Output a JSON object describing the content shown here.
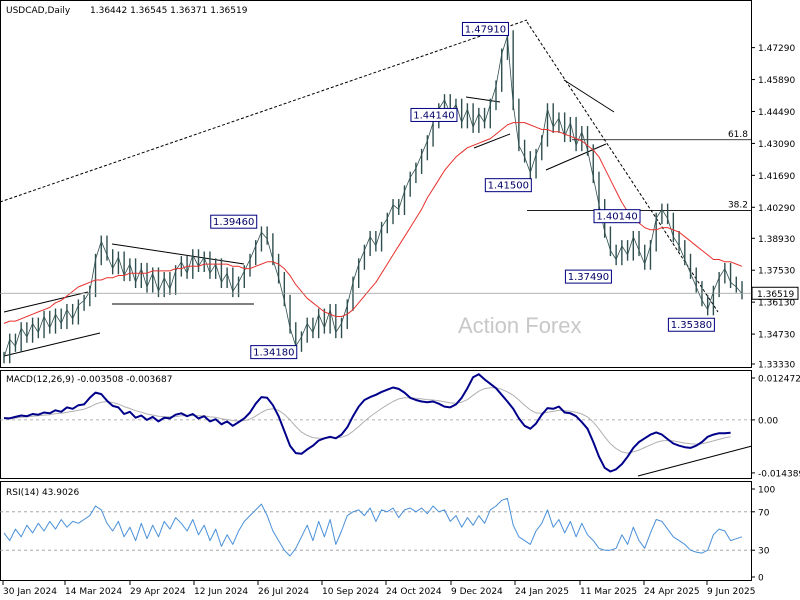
{
  "chart_data": [
    {
      "type": "line",
      "panel": "price",
      "title": "USDCAD,Daily",
      "ohlc": "1.36442 1.36545 1.36371 1.36519",
      "ylim": [
        1.3333,
        1.4929
      ],
      "yticks": [
        "1.47290",
        "1.45890",
        "1.44490",
        "1.43090",
        "1.41690",
        "1.40290",
        "1.38930",
        "1.37530",
        "1.36130",
        "1.34730",
        "1.33330"
      ],
      "current_price": "1.36519",
      "watermark": "Action Forex",
      "fib_levels": [
        {
          "label": "61.8",
          "value": 1.4325
        },
        {
          "label": "38.2",
          "value": 1.4015
        }
      ],
      "annotations": [
        "1.47910",
        "1.44140",
        "1.41500",
        "1.39460",
        "1.40140",
        "1.37490",
        "1.35380",
        "1.34180"
      ],
      "series": [
        {
          "values": [
            1.337,
            1.345,
            1.342,
            1.35,
            1.346,
            1.352,
            1.348,
            1.355,
            1.35,
            1.356,
            1.352,
            1.358,
            1.354,
            1.36,
            1.362,
            1.366,
            1.38,
            1.388,
            1.382,
            1.376,
            1.381,
            1.373,
            1.378,
            1.37,
            1.376,
            1.368,
            1.374,
            1.366,
            1.372,
            1.367,
            1.375,
            1.379,
            1.374,
            1.382,
            1.377,
            1.381,
            1.374,
            1.378,
            1.37,
            1.374,
            1.366,
            1.37,
            1.375,
            1.38,
            1.386,
            1.392,
            1.389,
            1.38,
            1.372,
            1.362,
            1.35,
            1.342,
            1.346,
            1.352,
            1.348,
            1.356,
            1.35,
            1.358,
            1.348,
            1.352,
            1.36,
            1.37,
            1.378,
            1.384,
            1.39,
            1.386,
            1.394,
            1.398,
            1.404,
            1.402,
            1.41,
            1.416,
            1.42,
            1.426,
            1.432,
            1.44,
            1.446,
            1.45,
            1.444,
            1.448,
            1.44,
            1.446,
            1.438,
            1.444,
            1.44,
            1.448,
            1.456,
            1.47,
            1.478,
            1.448,
            1.43,
            1.425,
            1.418,
            1.426,
            1.432,
            1.446,
            1.438,
            1.442,
            1.434,
            1.44,
            1.43,
            1.436,
            1.428,
            1.416,
            1.404,
            1.392,
            1.384,
            1.38,
            1.386,
            1.382,
            1.39,
            1.384,
            1.378,
            1.386,
            1.398,
            1.402,
            1.398,
            1.39,
            1.386,
            1.38,
            1.374,
            1.368,
            1.362,
            1.358,
            1.366,
            1.372,
            1.376,
            1.37,
            1.368,
            1.365
          ]
        },
        {
          "values": [
            1.352,
            1.353,
            1.353,
            1.354,
            1.355,
            1.356,
            1.357,
            1.358,
            1.359,
            1.361,
            1.362,
            1.364,
            1.366,
            1.368,
            1.369,
            1.37,
            1.371,
            1.371,
            1.372,
            1.372,
            1.373,
            1.373,
            1.374,
            1.374,
            1.374,
            1.374,
            1.375,
            1.375,
            1.375,
            1.375,
            1.376,
            1.376,
            1.377,
            1.377,
            1.377,
            1.378,
            1.378,
            1.378,
            1.378,
            1.378,
            1.377,
            1.377,
            1.376,
            1.376,
            1.377,
            1.378,
            1.379,
            1.379,
            1.378,
            1.376,
            1.373,
            1.369,
            1.366,
            1.363,
            1.361,
            1.359,
            1.357,
            1.356,
            1.355,
            1.355,
            1.356,
            1.358,
            1.361,
            1.364,
            1.367,
            1.37,
            1.374,
            1.378,
            1.382,
            1.386,
            1.39,
            1.394,
            1.398,
            1.402,
            1.407,
            1.411,
            1.415,
            1.419,
            1.422,
            1.425,
            1.427,
            1.429,
            1.43,
            1.431,
            1.432,
            1.433,
            1.435,
            1.437,
            1.439,
            1.44,
            1.44,
            1.44,
            1.439,
            1.438,
            1.437,
            1.437,
            1.436,
            1.436,
            1.435,
            1.434,
            1.433,
            1.432,
            1.43,
            1.428,
            1.425,
            1.42,
            1.415,
            1.41,
            1.405,
            1.401,
            1.398,
            1.396,
            1.394,
            1.393,
            1.393,
            1.394,
            1.394,
            1.393,
            1.392,
            1.39,
            1.388,
            1.386,
            1.384,
            1.382,
            1.38,
            1.38,
            1.379,
            1.379,
            1.378,
            1.377
          ]
        }
      ]
    },
    {
      "type": "line",
      "panel": "macd",
      "title": "MACD(12,26,9) -0.003508 -0.003687",
      "ylim": [
        -0.0155,
        0.013
      ],
      "yticks": [
        "0.012472",
        "0.00",
        "-0.014389"
      ],
      "series": [
        {
          "values": [
            0.0005,
            0.0004,
            0.0008,
            0.0012,
            0.001,
            0.0016,
            0.0014,
            0.002,
            0.0018,
            0.0026,
            0.0022,
            0.0034,
            0.003,
            0.004,
            0.0042,
            0.006,
            0.0074,
            0.007,
            0.0052,
            0.0038,
            0.0034,
            0.0016,
            0.0022,
            0.0006,
            0.0012,
            0.0,
            0.0008,
            -0.0004,
            0.0006,
            0.0004,
            0.0014,
            0.0018,
            0.001,
            0.0016,
            0.0004,
            0.001,
            -0.0004,
            0.0002,
            -0.0012,
            -0.0004,
            -0.0016,
            -0.0006,
            0.0004,
            0.002,
            0.0044,
            0.0062,
            0.006,
            0.004,
            0.001,
            -0.003,
            -0.007,
            -0.009,
            -0.0092,
            -0.008,
            -0.007,
            -0.0056,
            -0.005,
            -0.0046,
            -0.005,
            -0.004,
            -0.002,
            0.001,
            0.0036,
            0.0054,
            0.0062,
            0.0068,
            0.0076,
            0.0082,
            0.0088,
            0.0084,
            0.0074,
            0.006,
            0.0054,
            0.005,
            0.0048,
            0.005,
            0.0044,
            0.0036,
            0.0034,
            0.0042,
            0.006,
            0.0086,
            0.0116,
            0.0124,
            0.011,
            0.0098,
            0.0086,
            0.0068,
            0.005,
            0.003,
            0.0004,
            -0.0016,
            -0.0024,
            -0.001,
            0.0014,
            0.0032,
            0.003,
            0.0036,
            0.002,
            0.0018,
            0.001,
            -0.0006,
            -0.0024,
            -0.006,
            -0.01,
            -0.013,
            -0.014,
            -0.0134,
            -0.012,
            -0.01,
            -0.0076,
            -0.006,
            -0.005,
            -0.004,
            -0.0034,
            -0.004,
            -0.0052,
            -0.0064,
            -0.007,
            -0.0074,
            -0.0076,
            -0.007,
            -0.006,
            -0.0046,
            -0.004,
            -0.0036,
            -0.0036,
            -0.0035
          ]
        },
        {
          "values": [
            0.0004,
            0.0004,
            0.0005,
            0.0007,
            0.0008,
            0.001,
            0.0011,
            0.0013,
            0.0014,
            0.0017,
            0.0018,
            0.0021,
            0.0023,
            0.0026,
            0.0029,
            0.0035,
            0.0043,
            0.0048,
            0.005,
            0.0047,
            0.0043,
            0.0036,
            0.0031,
            0.0025,
            0.0021,
            0.0016,
            0.0013,
            0.001,
            0.0009,
            0.0008,
            0.0009,
            0.0011,
            0.0011,
            0.0012,
            0.0011,
            0.0011,
            0.0008,
            0.0007,
            0.0003,
            0.0001,
            -0.0002,
            -0.0003,
            -0.0002,
            0.0002,
            0.001,
            0.002,
            0.0028,
            0.003,
            0.0026,
            0.0015,
            0.0,
            -0.0018,
            -0.0033,
            -0.0042,
            -0.0048,
            -0.005,
            -0.005,
            -0.0049,
            -0.0049,
            -0.0047,
            -0.0042,
            -0.0031,
            -0.0018,
            -0.0004,
            0.0009,
            0.002,
            0.0031,
            0.0041,
            0.005,
            0.0057,
            0.006,
            0.006,
            0.0059,
            0.0057,
            0.0055,
            0.0054,
            0.0052,
            0.0049,
            0.0046,
            0.0045,
            0.0048,
            0.0055,
            0.0067,
            0.0078,
            0.0085,
            0.0087,
            0.0087,
            0.0083,
            0.0076,
            0.0067,
            0.0054,
            0.004,
            0.0027,
            0.0019,
            0.0018,
            0.0021,
            0.0023,
            0.0026,
            0.0025,
            0.0024,
            0.0021,
            0.0016,
            0.0008,
            -0.0006,
            -0.0025,
            -0.0046,
            -0.0065,
            -0.0078,
            -0.0087,
            -0.009,
            -0.0087,
            -0.0082,
            -0.0075,
            -0.0068,
            -0.0061,
            -0.0057,
            -0.0056,
            -0.0057,
            -0.006,
            -0.0063,
            -0.0065,
            -0.0066,
            -0.0065,
            -0.0061,
            -0.0057,
            -0.0053,
            -0.0049,
            -0.0046
          ]
        }
      ]
    },
    {
      "type": "line",
      "panel": "rsi",
      "title": "RSI(14) 43.9026",
      "ylim": [
        0,
        100
      ],
      "yticks": [
        "100",
        "70",
        "30",
        "0"
      ],
      "series": [
        {
          "values": [
            48,
            40,
            52,
            44,
            56,
            48,
            58,
            50,
            60,
            52,
            62,
            54,
            60,
            58,
            62,
            66,
            76,
            72,
            58,
            50,
            60,
            44,
            54,
            40,
            58,
            42,
            56,
            44,
            60,
            52,
            64,
            58,
            50,
            62,
            46,
            56,
            40,
            52,
            34,
            46,
            36,
            50,
            60,
            66,
            72,
            78,
            66,
            50,
            40,
            30,
            24,
            32,
            44,
            56,
            40,
            60,
            44,
            62,
            36,
            50,
            66,
            70,
            72,
            66,
            74,
            60,
            72,
            70,
            74,
            64,
            72,
            74,
            70,
            74,
            68,
            76,
            70,
            72,
            60,
            66,
            54,
            64,
            56,
            66,
            58,
            72,
            76,
            82,
            84,
            56,
            44,
            40,
            36,
            50,
            58,
            72,
            54,
            62,
            48,
            60,
            44,
            58,
            46,
            40,
            32,
            30,
            30,
            32,
            46,
            36,
            54,
            40,
            32,
            48,
            62,
            60,
            52,
            44,
            40,
            36,
            30,
            28,
            27,
            30,
            46,
            52,
            50,
            40,
            42,
            44
          ]
        }
      ]
    }
  ],
  "xaxis": {
    "labels": [
      "30 Jan 2024",
      "14 Mar 2024",
      "29 Apr 2024",
      "12 Jun 2024",
      "26 Jul 2024",
      "10 Sep 2024",
      "24 Oct 2024",
      "9 Dec 2024",
      "24 Jan 2025",
      "11 Mar 2025",
      "24 Apr 2025",
      "9 Jun 2025"
    ]
  },
  "colors": {
    "price": "#2f4f4f",
    "ma": "#e8322f",
    "macd": "#00008b",
    "signal": "#b0b0b0",
    "rsi": "#4a90d9",
    "label_box": "#000080"
  }
}
